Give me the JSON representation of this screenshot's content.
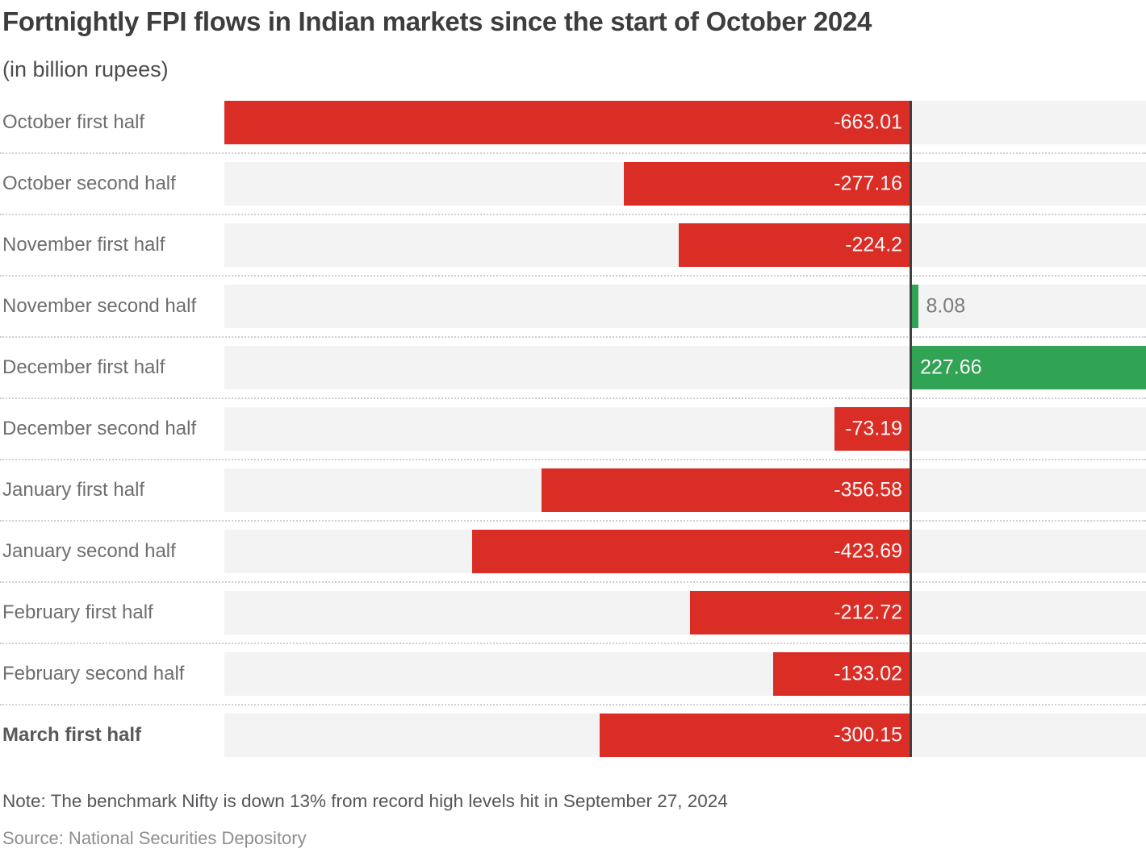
{
  "colors": {
    "negative_bar": "#d92d26",
    "positive_bar": "#31a354",
    "bar_track": "#f3f3f3",
    "zero_line": "#404040",
    "separator": "#cfcfcf"
  },
  "chart_data": {
    "type": "bar",
    "orientation": "horizontal",
    "title": "Fortnightly FPI flows in Indian markets since the start of October 2024",
    "subtitle": "(in billion rupees)",
    "note": "Note: The benchmark Nifty is down 13% from record high levels hit in September 27, 2024",
    "source": "Source: National Securities Depository",
    "categories": [
      "October first half",
      "October second half",
      "November first half",
      "November second half",
      "December first half",
      "December second half",
      "January first half",
      "January second half",
      "February first half",
      "February second half",
      "March first half"
    ],
    "values": [
      -663.01,
      -277.16,
      -224.2,
      8.08,
      227.66,
      -73.19,
      -356.58,
      -423.69,
      -212.72,
      -133.02,
      -300.15
    ],
    "display_values": [
      "-663.01",
      "-277.16",
      "-224.2",
      "8.08",
      "227.66",
      "-73.19",
      "-356.58",
      "-423.69",
      "-212.72",
      "-133.02",
      "-300.15"
    ],
    "xlim": [
      -663.01,
      227.66
    ],
    "bold_category_index": 10,
    "grid": "dotted-row-separators",
    "legend": "none"
  }
}
